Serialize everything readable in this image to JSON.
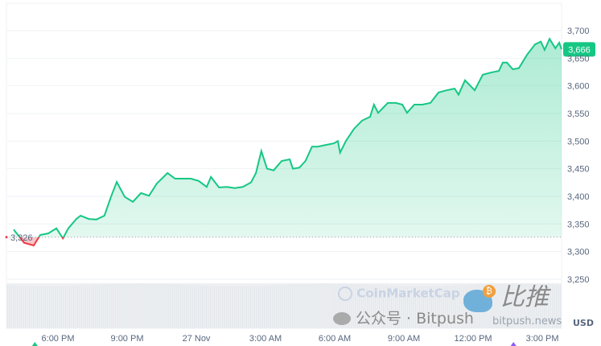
{
  "chart_data": {
    "type": "area",
    "currency": "USD",
    "baseline": 3326,
    "baseline_label": "3,326",
    "current_price_label": "3,666",
    "ylim": [
      3225,
      3720
    ],
    "yticks": [
      3250,
      3300,
      3350,
      3400,
      3450,
      3500,
      3550,
      3600,
      3650,
      3700
    ],
    "ytick_labels": [
      "3,250",
      "3,300",
      "3,350",
      "3,400",
      "3,450",
      "3,500",
      "3,550",
      "3,600",
      "3,650",
      "3,700"
    ],
    "xlim": [
      "11-26 15:45",
      "11-27 16:00"
    ],
    "xticks": [
      {
        "t": "11-26 18:00",
        "label": "6:00 PM"
      },
      {
        "t": "11-26 21:00",
        "label": "9:00 PM"
      },
      {
        "t": "11-27 00:00",
        "label": "27 Nov"
      },
      {
        "t": "11-27 03:00",
        "label": "3:00 AM"
      },
      {
        "t": "11-27 06:00",
        "label": "6:00 AM"
      },
      {
        "t": "11-27 09:00",
        "label": "9:00 AM"
      },
      {
        "t": "11-27 12:00",
        "label": "12:00 PM"
      },
      {
        "t": "11-27 15:00",
        "label": "3:00 PM"
      }
    ],
    "grid": true,
    "colors": {
      "up": "#16c784",
      "down": "#ea3943",
      "event_up": "#16c784",
      "event_other": "#8b5cf6"
    },
    "events": [
      "11-26 17:00",
      "11-27 13:45"
    ],
    "points": [
      [
        "11-26 16:05",
        3340
      ],
      [
        "11-26 16:32",
        3316
      ],
      [
        "11-26 16:57",
        3311
      ],
      [
        "11-26 17:14",
        3330
      ],
      [
        "11-26 17:35",
        3333
      ],
      [
        "11-26 17:56",
        3342
      ],
      [
        "11-26 18:13",
        3324
      ],
      [
        "11-26 18:27",
        3342
      ],
      [
        "11-26 18:48",
        3359
      ],
      [
        "11-26 18:59",
        3365
      ],
      [
        "11-26 19:20",
        3359
      ],
      [
        "11-26 19:40",
        3358
      ],
      [
        "11-26 20:01",
        3365
      ],
      [
        "11-26 20:18",
        3399
      ],
      [
        "11-26 20:33",
        3426
      ],
      [
        "11-26 20:54",
        3399
      ],
      [
        "11-26 21:15",
        3390
      ],
      [
        "11-26 21:36",
        3406
      ],
      [
        "11-26 21:57",
        3401
      ],
      [
        "11-26 22:17",
        3423
      ],
      [
        "11-26 22:45",
        3442
      ],
      [
        "11-26 23:05",
        3432
      ],
      [
        "11-26 23:25",
        3432
      ],
      [
        "11-26 23:46",
        3432
      ],
      [
        "11-27 00:06",
        3428
      ],
      [
        "11-27 00:27",
        3417
      ],
      [
        "11-27 00:38",
        3435
      ],
      [
        "11-27 00:59",
        3416
      ],
      [
        "11-27 01:19",
        3417
      ],
      [
        "11-27 01:40",
        3415
      ],
      [
        "11-27 02:01",
        3417
      ],
      [
        "11-27 02:22",
        3425
      ],
      [
        "11-27 02:35",
        3442
      ],
      [
        "11-27 02:49",
        3482
      ],
      [
        "11-27 03:04",
        3450
      ],
      [
        "11-27 03:21",
        3447
      ],
      [
        "11-27 03:42",
        3464
      ],
      [
        "11-27 04:03",
        3467
      ],
      [
        "11-27 04:11",
        3450
      ],
      [
        "11-27 04:28",
        3452
      ],
      [
        "11-27 04:44",
        3464
      ],
      [
        "11-27 05:01",
        3490
      ],
      [
        "11-27 05:16",
        3490
      ],
      [
        "11-27 05:37",
        3493
      ],
      [
        "11-27 05:58",
        3496
      ],
      [
        "11-27 06:08",
        3500
      ],
      [
        "11-27 06:14",
        3479
      ],
      [
        "11-27 06:29",
        3500
      ],
      [
        "11-27 06:50",
        3522
      ],
      [
        "11-27 07:11",
        3537
      ],
      [
        "11-27 07:32",
        3544
      ],
      [
        "11-27 07:42",
        3566
      ],
      [
        "11-27 07:53",
        3551
      ],
      [
        "11-27 08:18",
        3569
      ],
      [
        "11-27 08:39",
        3569
      ],
      [
        "11-27 08:56",
        3566
      ],
      [
        "11-27 09:08",
        3551
      ],
      [
        "11-27 09:27",
        3566
      ],
      [
        "11-27 09:48",
        3566
      ],
      [
        "11-27 10:09",
        3569
      ],
      [
        "11-27 10:30",
        3588
      ],
      [
        "11-27 10:51",
        3592
      ],
      [
        "11-27 11:12",
        3595
      ],
      [
        "11-27 11:22",
        3584
      ],
      [
        "11-27 11:39",
        3610
      ],
      [
        "11-27 12:04",
        3592
      ],
      [
        "11-27 12:25",
        3620
      ],
      [
        "11-27 12:46",
        3624
      ],
      [
        "11-27 13:07",
        3627
      ],
      [
        "11-27 13:17",
        3642
      ],
      [
        "11-27 13:28",
        3642
      ],
      [
        "11-27 13:43",
        3630
      ],
      [
        "11-27 13:59",
        3632
      ],
      [
        "11-27 14:20",
        3656
      ],
      [
        "11-27 14:41",
        3675
      ],
      [
        "11-27 14:56",
        3680
      ],
      [
        "11-27 15:06",
        3665
      ],
      [
        "11-27 15:19",
        3685
      ],
      [
        "11-27 15:34",
        3668
      ],
      [
        "11-27 15:44",
        3678
      ],
      [
        "11-27 15:50",
        3666
      ]
    ]
  },
  "watermark": {
    "cmc": "CoinMarketCap",
    "bitpush_cn": "比推",
    "wechat": "公众号 · Bitpush",
    "site": "bitpush.news",
    "usd": "USD"
  }
}
